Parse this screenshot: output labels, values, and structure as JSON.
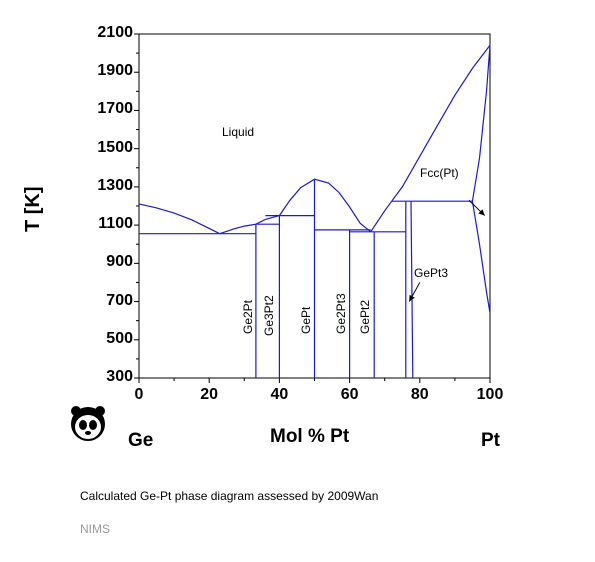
{
  "chart": {
    "ylabel": "T [K]",
    "xlabel": "Mol % Pt",
    "left_element": "Ge",
    "right_element": "Pt",
    "xlim": [
      0,
      100
    ],
    "ylim": [
      300,
      2100
    ],
    "xticks": [
      "0",
      "20",
      "40",
      "60",
      "80",
      "100"
    ],
    "yticks": [
      "300",
      "500",
      "700",
      "900",
      "1100",
      "1300",
      "1500",
      "1700",
      "1900",
      "2100"
    ],
    "line_color": "#1a1ad6"
  },
  "labels": {
    "liquid": "Liquid",
    "fcc": "Fcc(Pt)",
    "gept3": "GePt3",
    "ge2pt": "Ge2Pt",
    "ge3pt2": "Ge3Pt2",
    "gept": "GePt",
    "ge2pt3": "Ge2Pt3",
    "gept2": "GePt2"
  },
  "caption": "Calculated Ge-Pt phase diagram assessed by 2009Wan",
  "source": "NIMS",
  "logo": "panda-logo",
  "chart_data": {
    "type": "phase-diagram",
    "x_unit": "Mol % Pt",
    "y_unit": "T [K]",
    "series": [
      {
        "name": "liquidus-ge-side",
        "points": [
          [
            0,
            1211
          ],
          [
            5,
            1190
          ],
          [
            10,
            1163
          ],
          [
            15,
            1128
          ],
          [
            20,
            1083
          ],
          [
            23,
            1055
          ]
        ]
      },
      {
        "name": "liquidus-ge2pt",
        "points": [
          [
            23,
            1055
          ],
          [
            27,
            1080
          ],
          [
            30,
            1095
          ],
          [
            33.3,
            1105
          ]
        ]
      },
      {
        "name": "liquidus-ge3pt2",
        "points": [
          [
            33.3,
            1105
          ],
          [
            36,
            1130
          ],
          [
            40,
            1150
          ]
        ]
      },
      {
        "name": "liquidus-gept",
        "points": [
          [
            40,
            1150
          ],
          [
            43,
            1230
          ],
          [
            46,
            1295
          ],
          [
            50,
            1340
          ],
          [
            54,
            1320
          ],
          [
            57,
            1270
          ],
          [
            60,
            1195
          ],
          [
            63,
            1110
          ],
          [
            66,
            1065
          ]
        ]
      },
      {
        "name": "liquidus-gept2",
        "points": [
          [
            66,
            1065
          ],
          [
            68,
            1120
          ],
          [
            70,
            1175
          ],
          [
            72,
            1225
          ]
        ]
      },
      {
        "name": "liquidus-gept3-fcc",
        "points": [
          [
            72,
            1225
          ],
          [
            75,
            1300
          ],
          [
            80,
            1460
          ],
          [
            85,
            1620
          ],
          [
            90,
            1780
          ],
          [
            95,
            1920
          ],
          [
            100,
            2041
          ]
        ]
      },
      {
        "name": "solidus-fcc",
        "points": [
          [
            95,
            1225
          ],
          [
            97,
            1450
          ],
          [
            99,
            1800
          ],
          [
            100,
            2041
          ]
        ]
      },
      {
        "name": "solvus-fcc",
        "points": [
          [
            95,
            1225
          ],
          [
            97,
            1000
          ],
          [
            99,
            750
          ],
          [
            100,
            640
          ]
        ]
      },
      {
        "name": "eutectic-ge-ge2pt",
        "points": [
          [
            0,
            1055
          ],
          [
            33.3,
            1055
          ]
        ]
      },
      {
        "name": "peritectic-ge3pt2",
        "points": [
          [
            33.3,
            1105
          ],
          [
            40,
            1105
          ]
        ]
      },
      {
        "name": "peritectic-gept",
        "points": [
          [
            36,
            1150
          ],
          [
            50,
            1150
          ]
        ]
      },
      {
        "name": "eutectic-gept-ge2pt3",
        "points": [
          [
            50,
            1075
          ],
          [
            66,
            1075
          ]
        ]
      },
      {
        "name": "eutectic-ge2pt3-gept2",
        "points": [
          [
            60,
            1065
          ],
          [
            67,
            1065
          ]
        ]
      },
      {
        "name": "eutectic-gept2-gept3",
        "points": [
          [
            67,
            1065
          ],
          [
            76,
            1065
          ]
        ]
      },
      {
        "name": "eutectic-gept3-fcc",
        "points": [
          [
            72,
            1225
          ],
          [
            95,
            1225
          ]
        ]
      },
      {
        "name": "Ge2Pt",
        "points": [
          [
            33.3,
            300
          ],
          [
            33.3,
            1105
          ]
        ]
      },
      {
        "name": "Ge3Pt2",
        "points": [
          [
            40,
            300
          ],
          [
            40,
            1150
          ]
        ]
      },
      {
        "name": "GePt",
        "points": [
          [
            50,
            300
          ],
          [
            50,
            1340
          ]
        ]
      },
      {
        "name": "Ge2Pt3",
        "points": [
          [
            60,
            300
          ],
          [
            60,
            1075
          ]
        ]
      },
      {
        "name": "GePt2",
        "points": [
          [
            67,
            300
          ],
          [
            67,
            1065
          ]
        ]
      },
      {
        "name": "GePt3-left",
        "points": [
          [
            76,
            300
          ],
          [
            76,
            1225
          ]
        ]
      },
      {
        "name": "GePt3-right",
        "points": [
          [
            78,
            300
          ],
          [
            77.5,
            1225
          ]
        ]
      }
    ],
    "arrows": [
      {
        "label": "Fcc(Pt)",
        "from": [
          94,
          1230
        ],
        "to": [
          98.5,
          1150
        ]
      },
      {
        "label": "GePt3",
        "from": [
          80,
          800
        ],
        "to": [
          77,
          700
        ]
      }
    ]
  }
}
